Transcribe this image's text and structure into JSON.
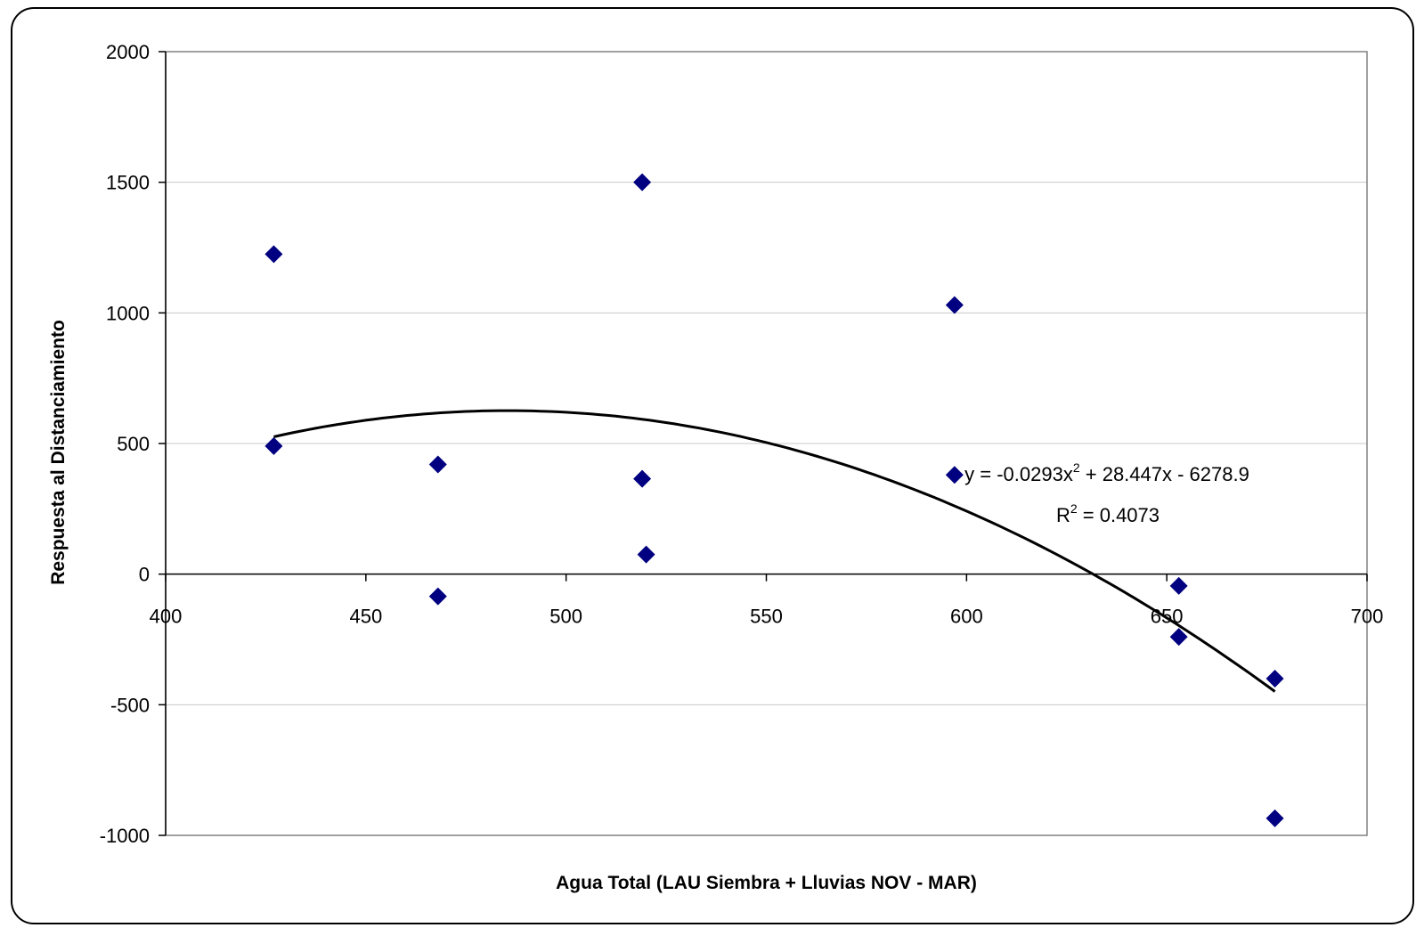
{
  "chart_data": {
    "type": "scatter",
    "xlabel": "Agua Total (LAU Siembra + Lluvias NOV - MAR)",
    "ylabel": "Respuesta al Distanciamiento",
    "xlim": [
      400,
      700
    ],
    "ylim": [
      -1000,
      2000
    ],
    "x_ticks": [
      "400",
      "450",
      "500",
      "550",
      "600",
      "650",
      "700"
    ],
    "y_ticks": [
      "2000",
      "1500",
      "1000",
      "500",
      "0",
      "-500",
      "-1000"
    ],
    "grid": "horizontal",
    "marker_color": "#000080",
    "trend_color": "#000000",
    "points": [
      {
        "x": 427,
        "y": 1225
      },
      {
        "x": 427,
        "y": 490
      },
      {
        "x": 468,
        "y": 420
      },
      {
        "x": 468,
        "y": -85
      },
      {
        "x": 519,
        "y": 1500
      },
      {
        "x": 519,
        "y": 365
      },
      {
        "x": 520,
        "y": 75
      },
      {
        "x": 597,
        "y": 1030
      },
      {
        "x": 597,
        "y": 380
      },
      {
        "x": 653,
        "y": -45
      },
      {
        "x": 653,
        "y": -240
      },
      {
        "x": 677,
        "y": -400
      },
      {
        "x": 677,
        "y": -935
      }
    ],
    "trendline": {
      "type": "polynomial",
      "coefficients": {
        "a": -0.0293,
        "b": 28.447,
        "c": -6278.9
      },
      "x_range": [
        427,
        677
      ],
      "equation_text": "y = -0.0293x",
      "equation_sup": "2",
      "equation_rest": " + 28.447x - 6278.9",
      "r2_text": "R",
      "r2_sup": "2",
      "r2_rest": " = 0.4073"
    }
  }
}
